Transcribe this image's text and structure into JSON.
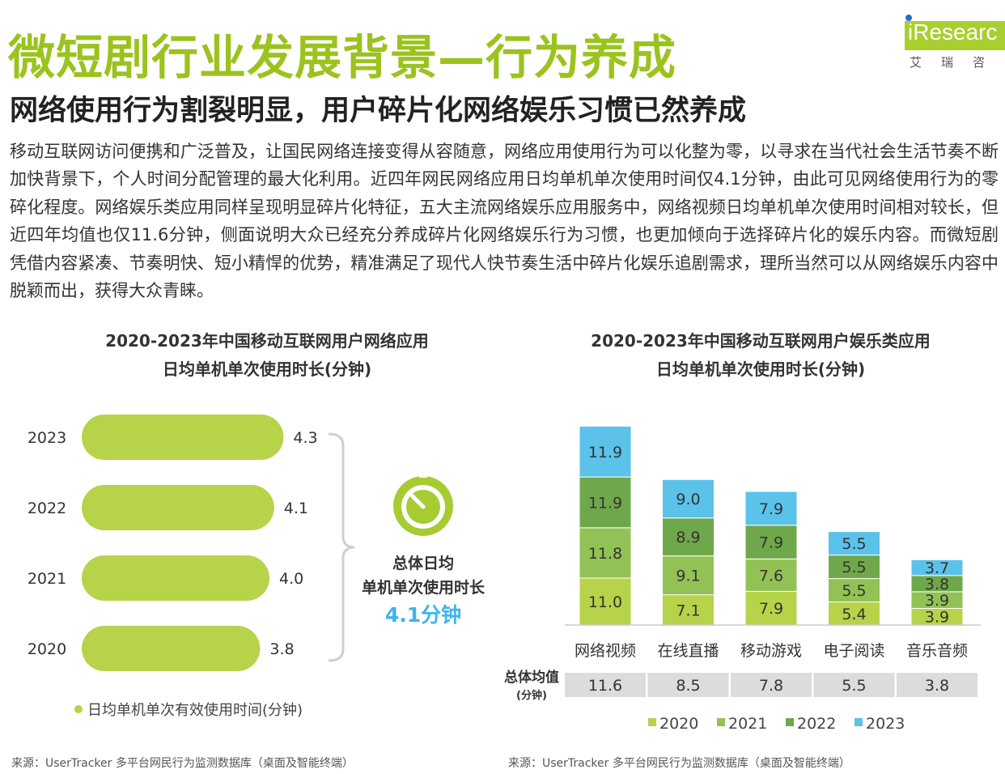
{
  "page": {
    "title": "微短剧行业发展背景—行为养成",
    "subtitle": "网络使用行为割裂明显，用户碎片化网络娱乐习惯已然养成",
    "body": "移动互联网访问便携和广泛普及，让国民网络连接变得从容随意，网络应用使用行为可以化整为零，以寻求在当代社会生活节奏不断加快背景下，个人时间分配管理的最大化利用。近四年网民网络应用日均单机单次使用时间仅4.1分钟，由此可见网络使用行为的零碎化程度。网络娱乐类应用同样呈现明显碎片化特征，五大主流网络娱乐应用服务中，网络视频日均单机单次使用时间相对较长，但近四年均值也仅11.6分钟，侧面说明大众已经充分养成碎片化网络娱乐行为习惯，也更加倾向于选择碎片化的娱乐内容。而微短剧凭借内容紧凑、节奏明快、短小精悍的优势，精准满足了现代人快节奏生活中碎片化娱乐追剧需求，理所当然可以从网络娱乐内容中脱颖而出，获得大众青睐。"
  },
  "logo": {
    "word": "iResearc",
    "cn": "艾瑞咨"
  },
  "colors": {
    "brand_green": "#9bc31e",
    "bar_green": "#b6d34a",
    "y2020": "#b6d34a",
    "y2021": "#92c255",
    "y2022": "#6fa84a",
    "y2023": "#5bc2ea",
    "avg_cell": "#dcdcdc"
  },
  "chart_data": [
    {
      "type": "bar",
      "orientation": "horizontal",
      "title_lines": [
        "2020-2023年中国移动互联网用户网络应用",
        "日均单机单次使用时长(分钟)"
      ],
      "categories": [
        "2023",
        "2022",
        "2021",
        "2020"
      ],
      "values": [
        4.3,
        4.1,
        4.0,
        3.8
      ],
      "legend": "日均单机单次有效使用时间(分钟)",
      "annotation": {
        "icon": "timer-icon",
        "lines": [
          "总体日均",
          "单机单次使用时长"
        ],
        "value": "4.1分钟"
      }
    },
    {
      "type": "bar",
      "stacked": true,
      "title_lines": [
        "2020-2023年中国移动互联网用户娱乐类应用",
        "日均单机单次使用时长(分钟)"
      ],
      "categories": [
        "网络视频",
        "在线直播",
        "移动游戏",
        "电子阅读",
        "音乐音频"
      ],
      "series": [
        {
          "name": "2020",
          "values": [
            11.0,
            7.1,
            7.9,
            5.4,
            3.9
          ]
        },
        {
          "name": "2021",
          "values": [
            11.8,
            9.1,
            7.6,
            5.5,
            3.9
          ]
        },
        {
          "name": "2022",
          "values": [
            11.9,
            8.9,
            7.9,
            5.5,
            3.8
          ]
        },
        {
          "name": "2023",
          "values": [
            11.9,
            9.0,
            7.9,
            5.5,
            3.7
          ]
        }
      ],
      "avg_label": "总体均值",
      "avg_unit": "(分钟)",
      "averages": [
        "11.6",
        "8.5",
        "7.8",
        "5.5",
        "3.8"
      ],
      "legend_position": "bottom"
    }
  ],
  "sources": {
    "left": "来源：UserTracker 多平台网民行为监测数据库（桌面及智能终端）",
    "right": "来源：UserTracker 多平台网民行为监测数据库（桌面及智能终端）"
  }
}
